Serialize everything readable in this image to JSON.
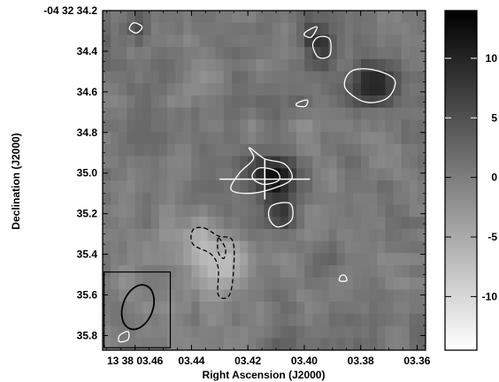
{
  "chart_data": {
    "type": "heatmap",
    "xlabel": "Right Ascension (J2000)",
    "ylabel": "Declination (J2000)",
    "x_ticks": [
      {
        "v": 3.46,
        "label": "13 38 03.46"
      },
      {
        "v": 3.44,
        "label": "03.44"
      },
      {
        "v": 3.42,
        "label": "03.42"
      },
      {
        "v": 3.4,
        "label": "03.40"
      },
      {
        "v": 3.38,
        "label": "03.38"
      },
      {
        "v": 3.36,
        "label": "03.36"
      }
    ],
    "y_ticks": [
      {
        "v": 34.2,
        "label": "-04 32 34.2"
      },
      {
        "v": 34.4,
        "label": "34.4"
      },
      {
        "v": 34.6,
        "label": "34.6"
      },
      {
        "v": 34.8,
        "label": "34.8"
      },
      {
        "v": 35.0,
        "label": "35.0"
      },
      {
        "v": 35.2,
        "label": "35.2"
      },
      {
        "v": 35.4,
        "label": "35.4"
      },
      {
        "v": 35.6,
        "label": "35.6"
      },
      {
        "v": 35.8,
        "label": "35.8"
      }
    ],
    "xlim": [
      3.4715,
      3.357
    ],
    "ylim": [
      34.2,
      35.872
    ],
    "colorbar": {
      "ticks": [
        10,
        5,
        0,
        -5,
        -10
      ],
      "range": [
        -14.5,
        14
      ],
      "colormap": "white-to-black"
    },
    "grid_size": [
      40,
      28
    ],
    "seed": 7,
    "features": [
      {
        "ra": 3.4115,
        "dec": 35.02,
        "amp": 14.5,
        "sx": 0.0055,
        "sy": 0.07
      },
      {
        "ra": 3.4075,
        "dec": 35.2,
        "amp": 9,
        "sx": 0.004,
        "sy": 0.06
      },
      {
        "ra": 3.3755,
        "dec": 34.56,
        "amp": 10,
        "sx": 0.007,
        "sy": 0.08
      },
      {
        "ra": 3.4595,
        "dec": 34.28,
        "amp": 7,
        "sx": 0.003,
        "sy": 0.05
      },
      {
        "ra": 3.3975,
        "dec": 34.32,
        "amp": 6,
        "sx": 0.0035,
        "sy": 0.05
      },
      {
        "ra": 3.3935,
        "dec": 34.39,
        "amp": 6,
        "sx": 0.0035,
        "sy": 0.06
      },
      {
        "ra": 3.4015,
        "dec": 34.66,
        "amp": 5,
        "sx": 0.003,
        "sy": 0.04
      },
      {
        "ra": 3.428,
        "dec": 35.44,
        "amp": -7,
        "sx": 0.005,
        "sy": 0.12
      },
      {
        "ra": 3.437,
        "dec": 35.33,
        "amp": -5,
        "sx": 0.005,
        "sy": 0.07
      },
      {
        "ra": 3.445,
        "dec": 35.5,
        "amp": -3,
        "sx": 0.01,
        "sy": 0.2
      }
    ],
    "contours": [
      {
        "level": "positive",
        "style": "solid",
        "color": "white",
        "pts": [
          [
            3.4605,
            34.26
          ],
          [
            3.4575,
            34.28
          ],
          [
            3.4595,
            34.31
          ],
          [
            3.462,
            34.29
          ]
        ]
      },
      {
        "level": "positive",
        "style": "solid",
        "color": "white",
        "pts": [
          [
            3.399,
            34.3
          ],
          [
            3.3955,
            34.28
          ],
          [
            3.3975,
            34.33
          ],
          [
            3.4,
            34.32
          ]
        ]
      },
      {
        "level": "positive",
        "style": "solid",
        "color": "white",
        "pts": [
          [
            3.395,
            34.33
          ],
          [
            3.391,
            34.34
          ],
          [
            3.391,
            34.42
          ],
          [
            3.395,
            34.43
          ],
          [
            3.397,
            34.37
          ]
        ]
      },
      {
        "level": "positive",
        "style": "solid",
        "color": "white",
        "pts": [
          [
            3.3835,
            34.5
          ],
          [
            3.376,
            34.49
          ],
          [
            3.368,
            34.54
          ],
          [
            3.3705,
            34.63
          ],
          [
            3.3785,
            34.65
          ],
          [
            3.3855,
            34.58
          ]
        ]
      },
      {
        "level": "positive",
        "style": "solid",
        "color": "white",
        "pts": [
          [
            3.4025,
            34.655
          ],
          [
            3.399,
            34.64
          ],
          [
            3.3995,
            34.67
          ],
          [
            3.4025,
            34.67
          ]
        ]
      },
      {
        "level": "positive",
        "style": "solid",
        "color": "white",
        "pts": [
          [
            3.4195,
            34.875
          ],
          [
            3.414,
            34.93
          ],
          [
            3.407,
            34.955
          ],
          [
            3.4045,
            35.03
          ],
          [
            3.412,
            35.08
          ],
          [
            3.42,
            35.1
          ],
          [
            3.426,
            35.08
          ],
          [
            3.423,
            35.0
          ],
          [
            3.418,
            34.93
          ]
        ]
      },
      {
        "level": "positive",
        "style": "solid",
        "color": "white",
        "pts": [
          [
            3.416,
            34.975
          ],
          [
            3.41,
            34.99
          ],
          [
            3.409,
            35.035
          ],
          [
            3.4145,
            35.055
          ],
          [
            3.4185,
            35.02
          ]
        ]
      },
      {
        "level": "positive",
        "style": "solid",
        "color": "white",
        "pts": [
          [
            3.4115,
            35.16
          ],
          [
            3.405,
            35.15
          ],
          [
            3.4045,
            35.23
          ],
          [
            3.4095,
            35.265
          ],
          [
            3.4125,
            35.22
          ]
        ]
      },
      {
        "level": "positive",
        "style": "solid",
        "color": "white",
        "pts": [
          [
            3.4655,
            35.8
          ],
          [
            3.4625,
            35.78
          ],
          [
            3.4625,
            35.82
          ],
          [
            3.4655,
            35.83
          ]
        ]
      },
      {
        "level": "positive",
        "style": "solid",
        "color": "white",
        "pts": [
          [
            3.3855,
            35.505
          ],
          [
            3.385,
            35.53
          ],
          [
            3.3875,
            35.53
          ],
          [
            3.387,
            35.505
          ]
        ]
      },
      {
        "level": "negative",
        "style": "dashed",
        "color": "black",
        "pts": [
          [
            3.4355,
            35.27
          ],
          [
            3.4305,
            35.31
          ],
          [
            3.4255,
            35.33
          ],
          [
            3.425,
            35.46
          ],
          [
            3.4265,
            35.6
          ],
          [
            3.4305,
            35.6
          ],
          [
            3.4305,
            35.47
          ],
          [
            3.433,
            35.4
          ],
          [
            3.4395,
            35.35
          ],
          [
            3.4395,
            35.28
          ]
        ]
      },
      {
        "level": "negative",
        "style": "dashed",
        "color": "black",
        "pts": [
          [
            3.4305,
            35.32
          ],
          [
            3.428,
            35.37
          ],
          [
            3.4285,
            35.42
          ],
          [
            3.4305,
            35.39
          ]
        ]
      }
    ],
    "cross": {
      "ra": 3.414,
      "dec": 35.03,
      "ra_half": 0.016,
      "dec_half": 0.1
    },
    "beam": {
      "ra": 3.459,
      "dec": 35.66,
      "major": 0.22,
      "minor": 0.14
    }
  }
}
